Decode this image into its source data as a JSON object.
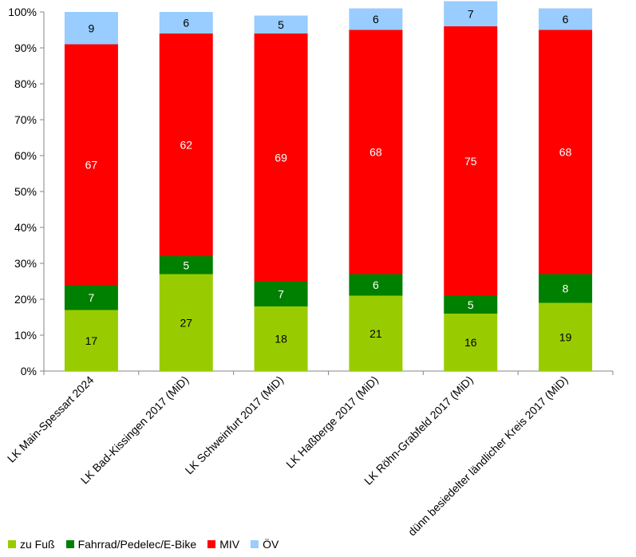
{
  "chart_data": {
    "type": "bar",
    "stacked": true,
    "percent": true,
    "categories": [
      "LK Main-Spessart 2024",
      "LK Bad-Kissingen 2017 (MiD)",
      "LK Schweinfurt 2017 (MiD)",
      "LK Haßberge 2017 (MiD)",
      "LK Röhn-Grabfeld 2017 (MiD)",
      "dünn besiedelter ländlicher Kreis 2017 (MiD)"
    ],
    "series": [
      {
        "name": "zu Fuß",
        "values": [
          17,
          27,
          18,
          21,
          16,
          19
        ],
        "color": "#99cc00",
        "label_color": "#000000"
      },
      {
        "name": "Fahrrad/Pedelec/E-Bike",
        "values": [
          7,
          5,
          7,
          6,
          5,
          8
        ],
        "color": "#008000",
        "label_color": "#ffffff"
      },
      {
        "name": "MIV",
        "values": [
          67,
          62,
          69,
          68,
          75,
          68
        ],
        "color": "#ff0000",
        "label_color": "#ffffff"
      },
      {
        "name": "ÖV",
        "values": [
          9,
          6,
          5,
          6,
          7,
          6
        ],
        "color": "#99ccff",
        "label_color": "#000000"
      }
    ],
    "yticks": [
      "0%",
      "10%",
      "20%",
      "30%",
      "40%",
      "50%",
      "60%",
      "70%",
      "80%",
      "90%",
      "100%"
    ],
    "ylim": [
      0,
      100
    ],
    "grid": false,
    "legend_position": "bottom-left"
  }
}
